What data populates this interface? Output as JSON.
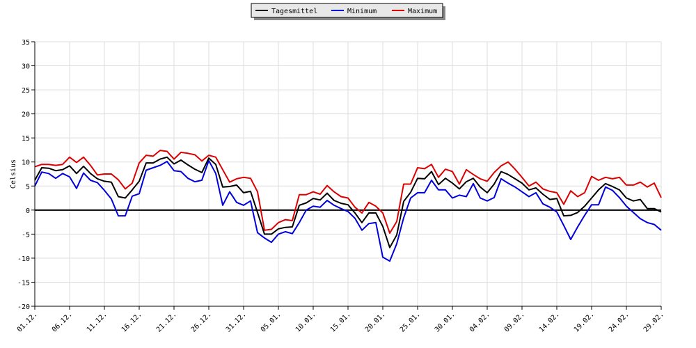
{
  "chart_data": {
    "type": "line",
    "title": "",
    "xlabel": "",
    "ylabel": "Celsius",
    "ylim": [
      -20,
      35
    ],
    "yticks": [
      -20,
      -15,
      -10,
      -5,
      0,
      5,
      10,
      15,
      20,
      25,
      30,
      35
    ],
    "grid": true,
    "legend_position": "top-center",
    "x": [
      "01.12.",
      "02.12.",
      "03.12.",
      "04.12.",
      "05.12.",
      "06.12.",
      "07.12.",
      "08.12.",
      "09.12.",
      "10.12.",
      "11.12.",
      "12.12.",
      "13.12.",
      "14.12.",
      "15.12.",
      "16.12.",
      "17.12.",
      "18.12.",
      "19.12.",
      "20.12.",
      "21.12.",
      "22.12.",
      "23.12.",
      "24.12.",
      "25.12.",
      "26.12.",
      "27.12.",
      "28.12.",
      "29.12.",
      "30.12.",
      "31.12.",
      "01.01.",
      "02.01.",
      "03.01.",
      "04.01.",
      "05.01.",
      "06.01.",
      "07.01.",
      "08.01.",
      "09.01.",
      "10.01.",
      "11.01.",
      "12.01.",
      "13.01.",
      "14.01.",
      "15.01.",
      "16.01.",
      "17.01.",
      "18.01.",
      "19.01.",
      "20.01.",
      "21.01.",
      "22.01.",
      "23.01.",
      "24.01.",
      "25.01.",
      "26.01.",
      "27.01.",
      "28.01.",
      "29.01.",
      "30.01.",
      "31.01.",
      "01.02.",
      "02.02.",
      "03.02.",
      "04.02.",
      "05.02.",
      "06.02.",
      "07.02.",
      "08.02.",
      "09.02.",
      "10.02.",
      "11.02.",
      "12.02.",
      "13.02.",
      "14.02.",
      "15.02.",
      "16.02.",
      "17.02.",
      "18.02.",
      "19.02.",
      "20.02.",
      "21.02.",
      "22.02.",
      "23.02.",
      "24.02.",
      "25.02.",
      "26.02.",
      "27.02.",
      "28.02.",
      "29.02."
    ],
    "x_tick_labels": [
      "01.12.",
      "06.12.",
      "11.12.",
      "16.12.",
      "21.12.",
      "26.12.",
      "31.12.",
      "05.01.",
      "10.01.",
      "15.01.",
      "20.01.",
      "25.01.",
      "30.01.",
      "04.02.",
      "09.02.",
      "14.02.",
      "19.02.",
      "24.02.",
      "29.02."
    ],
    "series": [
      {
        "name": "Tagesmittel",
        "color": "#000000",
        "values": [
          6.2,
          8.8,
          8.7,
          8.2,
          8.4,
          9.2,
          7.6,
          9.1,
          7.6,
          6.5,
          6,
          5.8,
          2.8,
          2.5,
          4.2,
          6,
          9.8,
          9.8,
          10.6,
          11,
          9.6,
          10.4,
          9.4,
          8.5,
          7.8,
          10.8,
          9.5,
          4.8,
          4.9,
          5.2,
          3.6,
          3.9,
          -0.5,
          -5,
          -5,
          -3.9,
          -3.6,
          -3.5,
          1,
          1.5,
          2.4,
          2.1,
          3.5,
          2,
          1.4,
          1.1,
          -0.6,
          -2.6,
          -0.6,
          -0.6,
          -3.4,
          -7.8,
          -5.2,
          1.8,
          3.7,
          6.6,
          6.5,
          8,
          5.3,
          6.6,
          5.6,
          4.4,
          5.9,
          6.6,
          4.8,
          3.6,
          5.4,
          8,
          7.4,
          6.5,
          5.6,
          4.2,
          4.6,
          3.3,
          2.2,
          2.4,
          -1.2,
          -1.1,
          -0.5,
          0.8,
          2.5,
          4.2,
          5.5,
          4.9,
          4.2,
          2.5,
          1.9,
          2.2,
          0.3,
          0.3,
          -0.4
        ]
      },
      {
        "name": "Minimum",
        "color": "#0000dd",
        "values": [
          5,
          7.9,
          7.6,
          6.6,
          7.6,
          6.9,
          4.5,
          7.7,
          6.2,
          5.7,
          4.1,
          2.3,
          -1.2,
          -1.2,
          2.9,
          3.4,
          8.3,
          8.8,
          9.3,
          10.1,
          8.2,
          8,
          6.6,
          5.9,
          6.2,
          10.3,
          7.6,
          1,
          3.8,
          1.6,
          1,
          1.9,
          -4.7,
          -5.8,
          -6.7,
          -5,
          -4.5,
          -4.9,
          -2.6,
          0,
          0.8,
          0.6,
          2,
          1,
          0.3,
          -0.3,
          -1.7,
          -4.2,
          -2.8,
          -2.6,
          -9.8,
          -10.6,
          -7,
          -1.6,
          2.5,
          3.6,
          3.6,
          6.2,
          4.2,
          4.2,
          2.5,
          3.1,
          2.8,
          5.5,
          2.5,
          1.9,
          2.6,
          6.5,
          5.6,
          4.8,
          3.8,
          2.8,
          3.6,
          1.3,
          0.6,
          -0.4,
          -3.2,
          -6.1,
          -3.5,
          -1.1,
          1.1,
          1.1,
          4.8,
          4.1,
          2.6,
          0.8,
          -0.5,
          -1.8,
          -2.6,
          -3,
          -4.2
        ]
      },
      {
        "name": "Maximum",
        "color": "#dd0000",
        "values": [
          9,
          9.5,
          9.5,
          9.3,
          9.5,
          11,
          9.9,
          11,
          9.3,
          7.3,
          7.5,
          7.5,
          6.3,
          4.4,
          5.6,
          9.8,
          11.4,
          11.2,
          12.4,
          12.2,
          10.6,
          12,
          11.8,
          11.5,
          10.2,
          11.4,
          11,
          8.4,
          5.8,
          6.5,
          6.8,
          6.6,
          3.8,
          -4.2,
          -4,
          -2.6,
          -2,
          -2.2,
          3.2,
          3.2,
          3.8,
          3.3,
          5.1,
          3.8,
          2.8,
          2.5,
          0.6,
          -0.6,
          1.6,
          0.8,
          -0.6,
          -4.8,
          -2.4,
          5.4,
          5.4,
          8.8,
          8.6,
          9.5,
          6.8,
          8.5,
          8,
          5.4,
          8.4,
          7.4,
          6.5,
          6,
          7.8,
          9.2,
          10,
          8.5,
          6.8,
          5,
          5.8,
          4.4,
          3.9,
          3.6,
          1.2,
          4,
          2.8,
          3.6,
          7,
          6.2,
          6.8,
          6.5,
          6.8,
          5.2,
          5.2,
          5.8,
          4.8,
          5.6,
          2.6
        ]
      }
    ]
  }
}
